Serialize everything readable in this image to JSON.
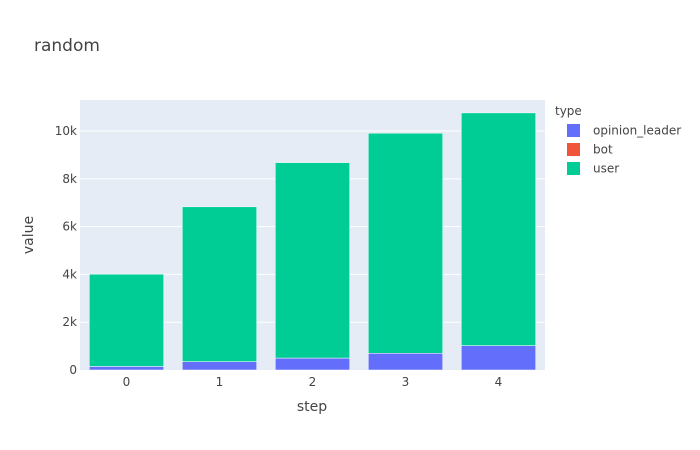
{
  "chart_data": {
    "type": "bar",
    "barmode": "stack",
    "title": "random",
    "xlabel": "step",
    "ylabel": "value",
    "categories": [
      "0",
      "1",
      "2",
      "3",
      "4"
    ],
    "ylim": [
      0,
      11300
    ],
    "yticks": [
      0,
      2000,
      4000,
      6000,
      8000,
      10000
    ],
    "ytick_labels": [
      "0",
      "2k",
      "4k",
      "6k",
      "8k",
      "10k"
    ],
    "legend_title": "type",
    "legend_position": "right",
    "grid": true,
    "series": [
      {
        "name": "opinion_leader",
        "color": "#636efa",
        "values": [
          150,
          350,
          500,
          700,
          1020
        ]
      },
      {
        "name": "bot",
        "color": "#ef553b",
        "values": [
          0,
          0,
          0,
          0,
          0
        ]
      },
      {
        "name": "user",
        "color": "#00cc96",
        "values": [
          3860,
          6480,
          8180,
          9210,
          9740
        ]
      }
    ]
  }
}
